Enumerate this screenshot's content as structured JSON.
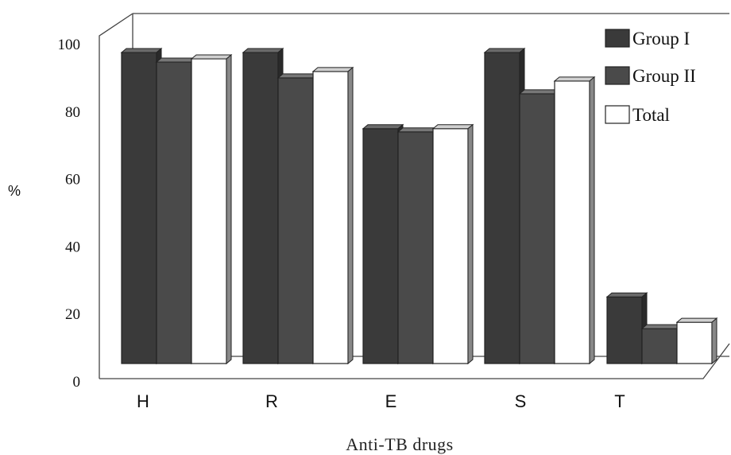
{
  "chart_data": {
    "type": "bar",
    "style": "3d-grouped",
    "categories": [
      "H",
      "R",
      "E",
      "S",
      "T"
    ],
    "series": [
      {
        "name": "Group I",
        "values": [
          98,
          98,
          74,
          98,
          21
        ],
        "color": "#3a3a3a"
      },
      {
        "name": "Group II",
        "values": [
          95,
          90,
          73,
          85,
          11
        ],
        "color": "#4a4a4a"
      },
      {
        "name": "Total",
        "values": [
          96,
          92,
          74,
          89,
          13
        ],
        "color": "#ffffff"
      }
    ],
    "ylabel": "%",
    "xlabel": "Anti-TB drugs",
    "yticks": [
      "0",
      "20",
      "40",
      "60",
      "80",
      "100"
    ],
    "ylim": [
      0,
      100
    ],
    "grid": false,
    "legend": "top-right"
  }
}
